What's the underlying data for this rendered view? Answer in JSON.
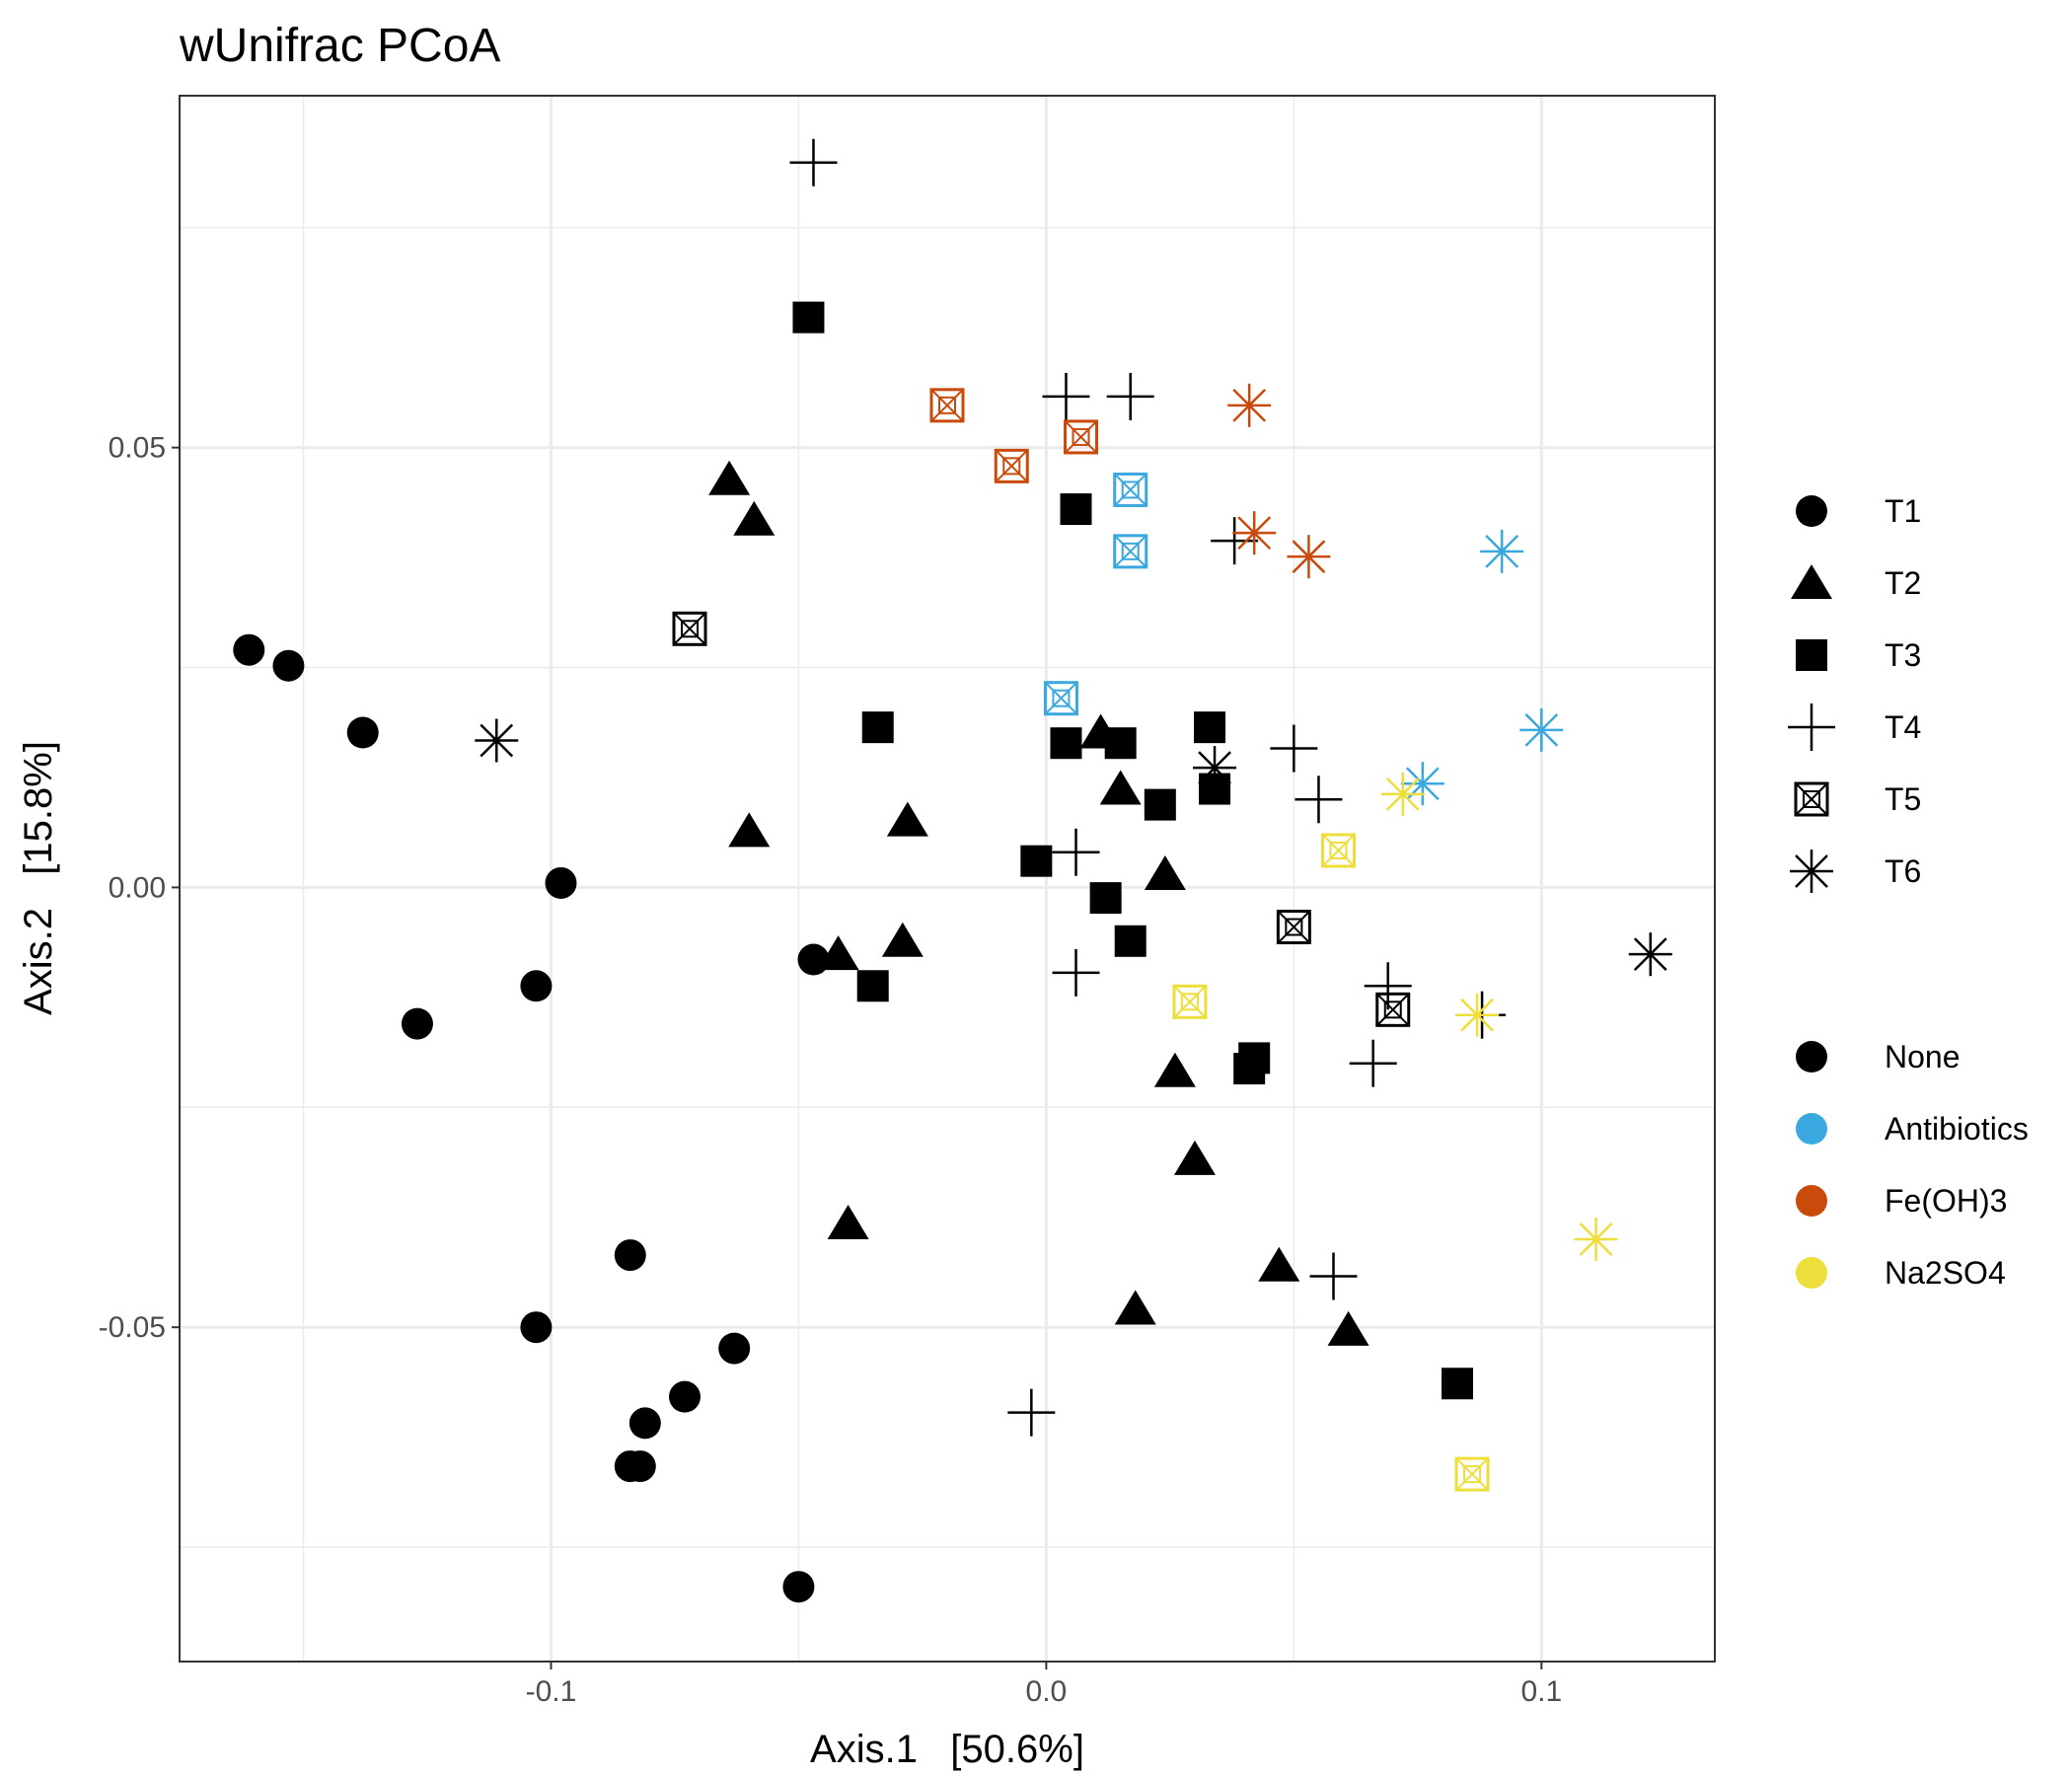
{
  "chart_data": {
    "type": "scatter",
    "title": "wUnifrac PCoA",
    "xlabel": "Axis.1   [50.6%]",
    "ylabel": "Axis.2   [15.8%]",
    "xlim": [
      -0.175,
      0.135
    ],
    "ylim": [
      -0.088,
      0.09
    ],
    "x_ticks": [
      -0.1,
      0.0,
      0.1
    ],
    "x_tick_labels": [
      "-0.1",
      "0.0",
      "0.1"
    ],
    "y_ticks": [
      -0.05,
      0.0,
      0.05
    ],
    "y_tick_labels": [
      "-0.05",
      "0.00",
      "0.05"
    ],
    "grid": true,
    "shape_legend": {
      "position": "right",
      "items": [
        {
          "label": "T1",
          "shape": "circle"
        },
        {
          "label": "T2",
          "shape": "triangle"
        },
        {
          "label": "T3",
          "shape": "square"
        },
        {
          "label": "T4",
          "shape": "plus"
        },
        {
          "label": "T5",
          "shape": "boxed-x"
        },
        {
          "label": "T6",
          "shape": "asterisk"
        }
      ]
    },
    "color_legend": {
      "position": "right",
      "items": [
        {
          "label": "None",
          "color": "#000000"
        },
        {
          "label": "Antibiotics",
          "color": "#3BA8E0"
        },
        {
          "label": "Fe(OH)3",
          "color": "#C84B0C"
        },
        {
          "label": "Na2SO4",
          "color": "#EDDE3B"
        }
      ]
    },
    "points": [
      {
        "x": -0.161,
        "y": 0.027,
        "shape": "T1",
        "group": "None"
      },
      {
        "x": -0.153,
        "y": 0.0252,
        "shape": "T1",
        "group": "None"
      },
      {
        "x": -0.138,
        "y": 0.0176,
        "shape": "T1",
        "group": "None"
      },
      {
        "x": -0.098,
        "y": 0.0005,
        "shape": "T1",
        "group": "None"
      },
      {
        "x": -0.103,
        "y": -0.0112,
        "shape": "T1",
        "group": "None"
      },
      {
        "x": -0.127,
        "y": -0.0155,
        "shape": "T1",
        "group": "None"
      },
      {
        "x": -0.084,
        "y": -0.0418,
        "shape": "T1",
        "group": "None"
      },
      {
        "x": -0.103,
        "y": -0.05,
        "shape": "T1",
        "group": "None"
      },
      {
        "x": -0.063,
        "y": -0.0524,
        "shape": "T1",
        "group": "None"
      },
      {
        "x": -0.073,
        "y": -0.0579,
        "shape": "T1",
        "group": "None"
      },
      {
        "x": -0.081,
        "y": -0.0609,
        "shape": "T1",
        "group": "None"
      },
      {
        "x": -0.084,
        "y": -0.0658,
        "shape": "T1",
        "group": "None"
      },
      {
        "x": -0.082,
        "y": -0.0658,
        "shape": "T1",
        "group": "None"
      },
      {
        "x": -0.05,
        "y": -0.0795,
        "shape": "T1",
        "group": "None"
      },
      {
        "x": -0.047,
        "y": -0.0082,
        "shape": "T1",
        "group": "None"
      },
      {
        "x": -0.064,
        "y": 0.0464,
        "shape": "T2",
        "group": "None"
      },
      {
        "x": -0.059,
        "y": 0.0418,
        "shape": "T2",
        "group": "None"
      },
      {
        "x": -0.06,
        "y": 0.0064,
        "shape": "T2",
        "group": "None"
      },
      {
        "x": -0.028,
        "y": 0.0076,
        "shape": "T2",
        "group": "None"
      },
      {
        "x": -0.042,
        "y": -0.0076,
        "shape": "T2",
        "group": "None"
      },
      {
        "x": -0.029,
        "y": -0.0061,
        "shape": "T2",
        "group": "None"
      },
      {
        "x": 0.011,
        "y": 0.0176,
        "shape": "T2",
        "group": "None"
      },
      {
        "x": 0.015,
        "y": 0.0112,
        "shape": "T2",
        "group": "None"
      },
      {
        "x": 0.024,
        "y": 0.0015,
        "shape": "T2",
        "group": "None"
      },
      {
        "x": 0.026,
        "y": -0.0209,
        "shape": "T2",
        "group": "None"
      },
      {
        "x": 0.03,
        "y": -0.0309,
        "shape": "T2",
        "group": "None"
      },
      {
        "x": -0.04,
        "y": -0.0382,
        "shape": "T2",
        "group": "None"
      },
      {
        "x": 0.047,
        "y": -0.043,
        "shape": "T2",
        "group": "None"
      },
      {
        "x": 0.018,
        "y": -0.0479,
        "shape": "T2",
        "group": "None"
      },
      {
        "x": 0.061,
        "y": -0.0503,
        "shape": "T2",
        "group": "None"
      },
      {
        "x": -0.048,
        "y": 0.0648,
        "shape": "T3",
        "group": "None"
      },
      {
        "x": 0.006,
        "y": 0.043,
        "shape": "T3",
        "group": "None"
      },
      {
        "x": -0.034,
        "y": 0.0182,
        "shape": "T3",
        "group": "None"
      },
      {
        "x": 0.004,
        "y": 0.0164,
        "shape": "T3",
        "group": "None"
      },
      {
        "x": 0.015,
        "y": 0.0164,
        "shape": "T3",
        "group": "None"
      },
      {
        "x": 0.033,
        "y": 0.0182,
        "shape": "T3",
        "group": "None"
      },
      {
        "x": 0.034,
        "y": 0.0112,
        "shape": "T3",
        "group": "None"
      },
      {
        "x": 0.023,
        "y": 0.0094,
        "shape": "T3",
        "group": "None"
      },
      {
        "x": -0.002,
        "y": 0.003,
        "shape": "T3",
        "group": "None"
      },
      {
        "x": 0.012,
        "y": -0.0012,
        "shape": "T3",
        "group": "None"
      },
      {
        "x": 0.017,
        "y": -0.0061,
        "shape": "T3",
        "group": "None"
      },
      {
        "x": -0.035,
        "y": -0.0112,
        "shape": "T3",
        "group": "None"
      },
      {
        "x": 0.042,
        "y": -0.0194,
        "shape": "T3",
        "group": "None"
      },
      {
        "x": 0.041,
        "y": -0.0206,
        "shape": "T3",
        "group": "None"
      },
      {
        "x": 0.083,
        "y": -0.0564,
        "shape": "T3",
        "group": "None"
      },
      {
        "x": -0.047,
        "y": 0.0824,
        "shape": "T4",
        "group": "None"
      },
      {
        "x": 0.004,
        "y": 0.0558,
        "shape": "T4",
        "group": "None"
      },
      {
        "x": 0.017,
        "y": 0.0558,
        "shape": "T4",
        "group": "None"
      },
      {
        "x": 0.038,
        "y": 0.0394,
        "shape": "T4",
        "group": "None"
      },
      {
        "x": 0.05,
        "y": 0.0158,
        "shape": "T4",
        "group": "None"
      },
      {
        "x": 0.055,
        "y": 0.01,
        "shape": "T4",
        "group": "None"
      },
      {
        "x": 0.006,
        "y": 0.004,
        "shape": "T4",
        "group": "None"
      },
      {
        "x": 0.006,
        "y": -0.0097,
        "shape": "T4",
        "group": "None"
      },
      {
        "x": 0.069,
        "y": -0.0112,
        "shape": "T4",
        "group": "None"
      },
      {
        "x": 0.066,
        "y": -0.02,
        "shape": "T4",
        "group": "None"
      },
      {
        "x": 0.088,
        "y": -0.0145,
        "shape": "T4",
        "group": "None"
      },
      {
        "x": 0.058,
        "y": -0.0442,
        "shape": "T4",
        "group": "None"
      },
      {
        "x": -0.003,
        "y": -0.0597,
        "shape": "T4",
        "group": "None"
      },
      {
        "x": -0.072,
        "y": 0.0294,
        "shape": "T5",
        "group": "None"
      },
      {
        "x": 0.05,
        "y": -0.0045,
        "shape": "T5",
        "group": "None"
      },
      {
        "x": 0.07,
        "y": -0.0139,
        "shape": "T5",
        "group": "None"
      },
      {
        "x": -0.111,
        "y": 0.0167,
        "shape": "T6",
        "group": "None"
      },
      {
        "x": 0.034,
        "y": 0.0136,
        "shape": "T6",
        "group": "None"
      },
      {
        "x": 0.122,
        "y": -0.0076,
        "shape": "T6",
        "group": "None"
      },
      {
        "x": 0.017,
        "y": 0.0452,
        "shape": "T5",
        "group": "Antibiotics"
      },
      {
        "x": 0.017,
        "y": 0.0382,
        "shape": "T5",
        "group": "Antibiotics"
      },
      {
        "x": 0.003,
        "y": 0.0215,
        "shape": "T5",
        "group": "Antibiotics"
      },
      {
        "x": 0.092,
        "y": 0.0382,
        "shape": "T6",
        "group": "Antibiotics"
      },
      {
        "x": 0.1,
        "y": 0.0179,
        "shape": "T6",
        "group": "Antibiotics"
      },
      {
        "x": 0.076,
        "y": 0.0118,
        "shape": "T6",
        "group": "Antibiotics"
      },
      {
        "x": -0.02,
        "y": 0.0548,
        "shape": "T5",
        "group": "Fe(OH)3"
      },
      {
        "x": -0.007,
        "y": 0.0479,
        "shape": "T5",
        "group": "Fe(OH)3"
      },
      {
        "x": 0.007,
        "y": 0.0512,
        "shape": "T5",
        "group": "Fe(OH)3"
      },
      {
        "x": 0.041,
        "y": 0.0548,
        "shape": "T6",
        "group": "Fe(OH)3"
      },
      {
        "x": 0.042,
        "y": 0.0403,
        "shape": "T6",
        "group": "Fe(OH)3"
      },
      {
        "x": 0.053,
        "y": 0.0376,
        "shape": "T6",
        "group": "Fe(OH)3"
      },
      {
        "x": 0.059,
        "y": 0.0042,
        "shape": "T5",
        "group": "Na2SO4"
      },
      {
        "x": 0.029,
        "y": -0.013,
        "shape": "T5",
        "group": "Na2SO4"
      },
      {
        "x": 0.086,
        "y": -0.0667,
        "shape": "T5",
        "group": "Na2SO4"
      },
      {
        "x": 0.072,
        "y": 0.0106,
        "shape": "T6",
        "group": "Na2SO4"
      },
      {
        "x": 0.087,
        "y": -0.0145,
        "shape": "T6",
        "group": "Na2SO4"
      },
      {
        "x": 0.111,
        "y": -0.04,
        "shape": "T6",
        "group": "Na2SO4"
      }
    ]
  }
}
